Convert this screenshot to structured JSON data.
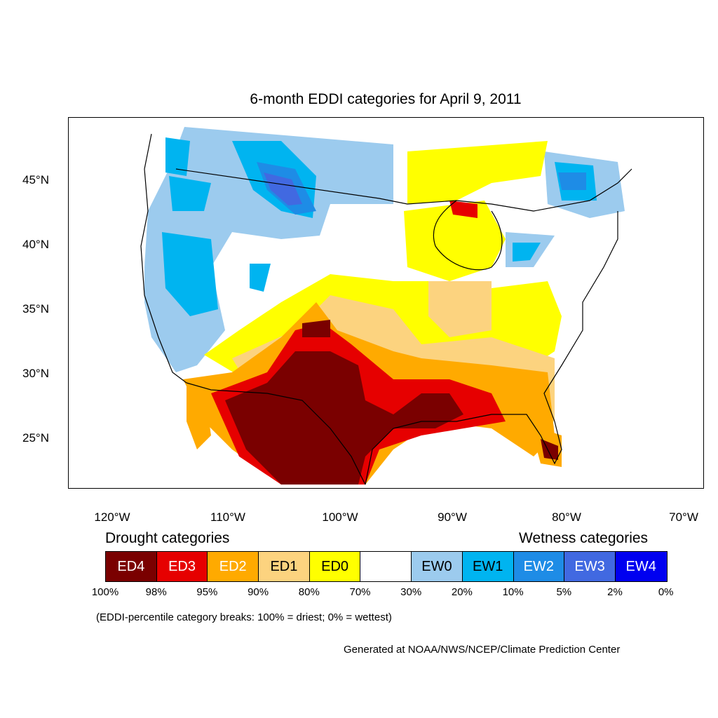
{
  "title": "6-month EDDI categories for April 9, 2011",
  "lat_labels": [
    "45°N",
    "40°N",
    "35°N",
    "30°N",
    "25°N"
  ],
  "lon_labels": [
    "120°W",
    "110°W",
    "100°W",
    "90°W",
    "80°W",
    "70°W"
  ],
  "legend": {
    "drought_heading": "Drought categories",
    "wetness_heading": "Wetness categories",
    "categories": [
      {
        "label": "ED4",
        "color": "#7a0000",
        "text_color": "#ffffff"
      },
      {
        "label": "ED3",
        "color": "#e60000",
        "text_color": "#ffffff"
      },
      {
        "label": "ED2",
        "color": "#ffaa00",
        "text_color": "#ffffff"
      },
      {
        "label": "ED1",
        "color": "#fcd37f",
        "text_color": "#000000"
      },
      {
        "label": "ED0",
        "color": "#ffff00",
        "text_color": "#000000"
      },
      {
        "label": "",
        "color": "#ffffff",
        "text_color": "#000000"
      },
      {
        "label": "EW0",
        "color": "#9ccbee",
        "text_color": "#000000"
      },
      {
        "label": "EW1",
        "color": "#00b4f0",
        "text_color": "#000000"
      },
      {
        "label": "EW2",
        "color": "#1e8ce6",
        "text_color": "#ffffff"
      },
      {
        "label": "EW3",
        "color": "#4169e1",
        "text_color": "#ffffff"
      },
      {
        "label": "EW4",
        "color": "#0000f0",
        "text_color": "#ffffff"
      }
    ],
    "ticks": [
      "100%",
      "98%",
      "95%",
      "90%",
      "80%",
      "70%",
      "30%",
      "20%",
      "10%",
      "5%",
      "2%",
      "0%"
    ]
  },
  "note": "(EDDI-percentile category breaks: 100% = driest; 0% = wettest)",
  "credit": "Generated at NOAA/NWS/NCEP/Climate Prediction Center"
}
